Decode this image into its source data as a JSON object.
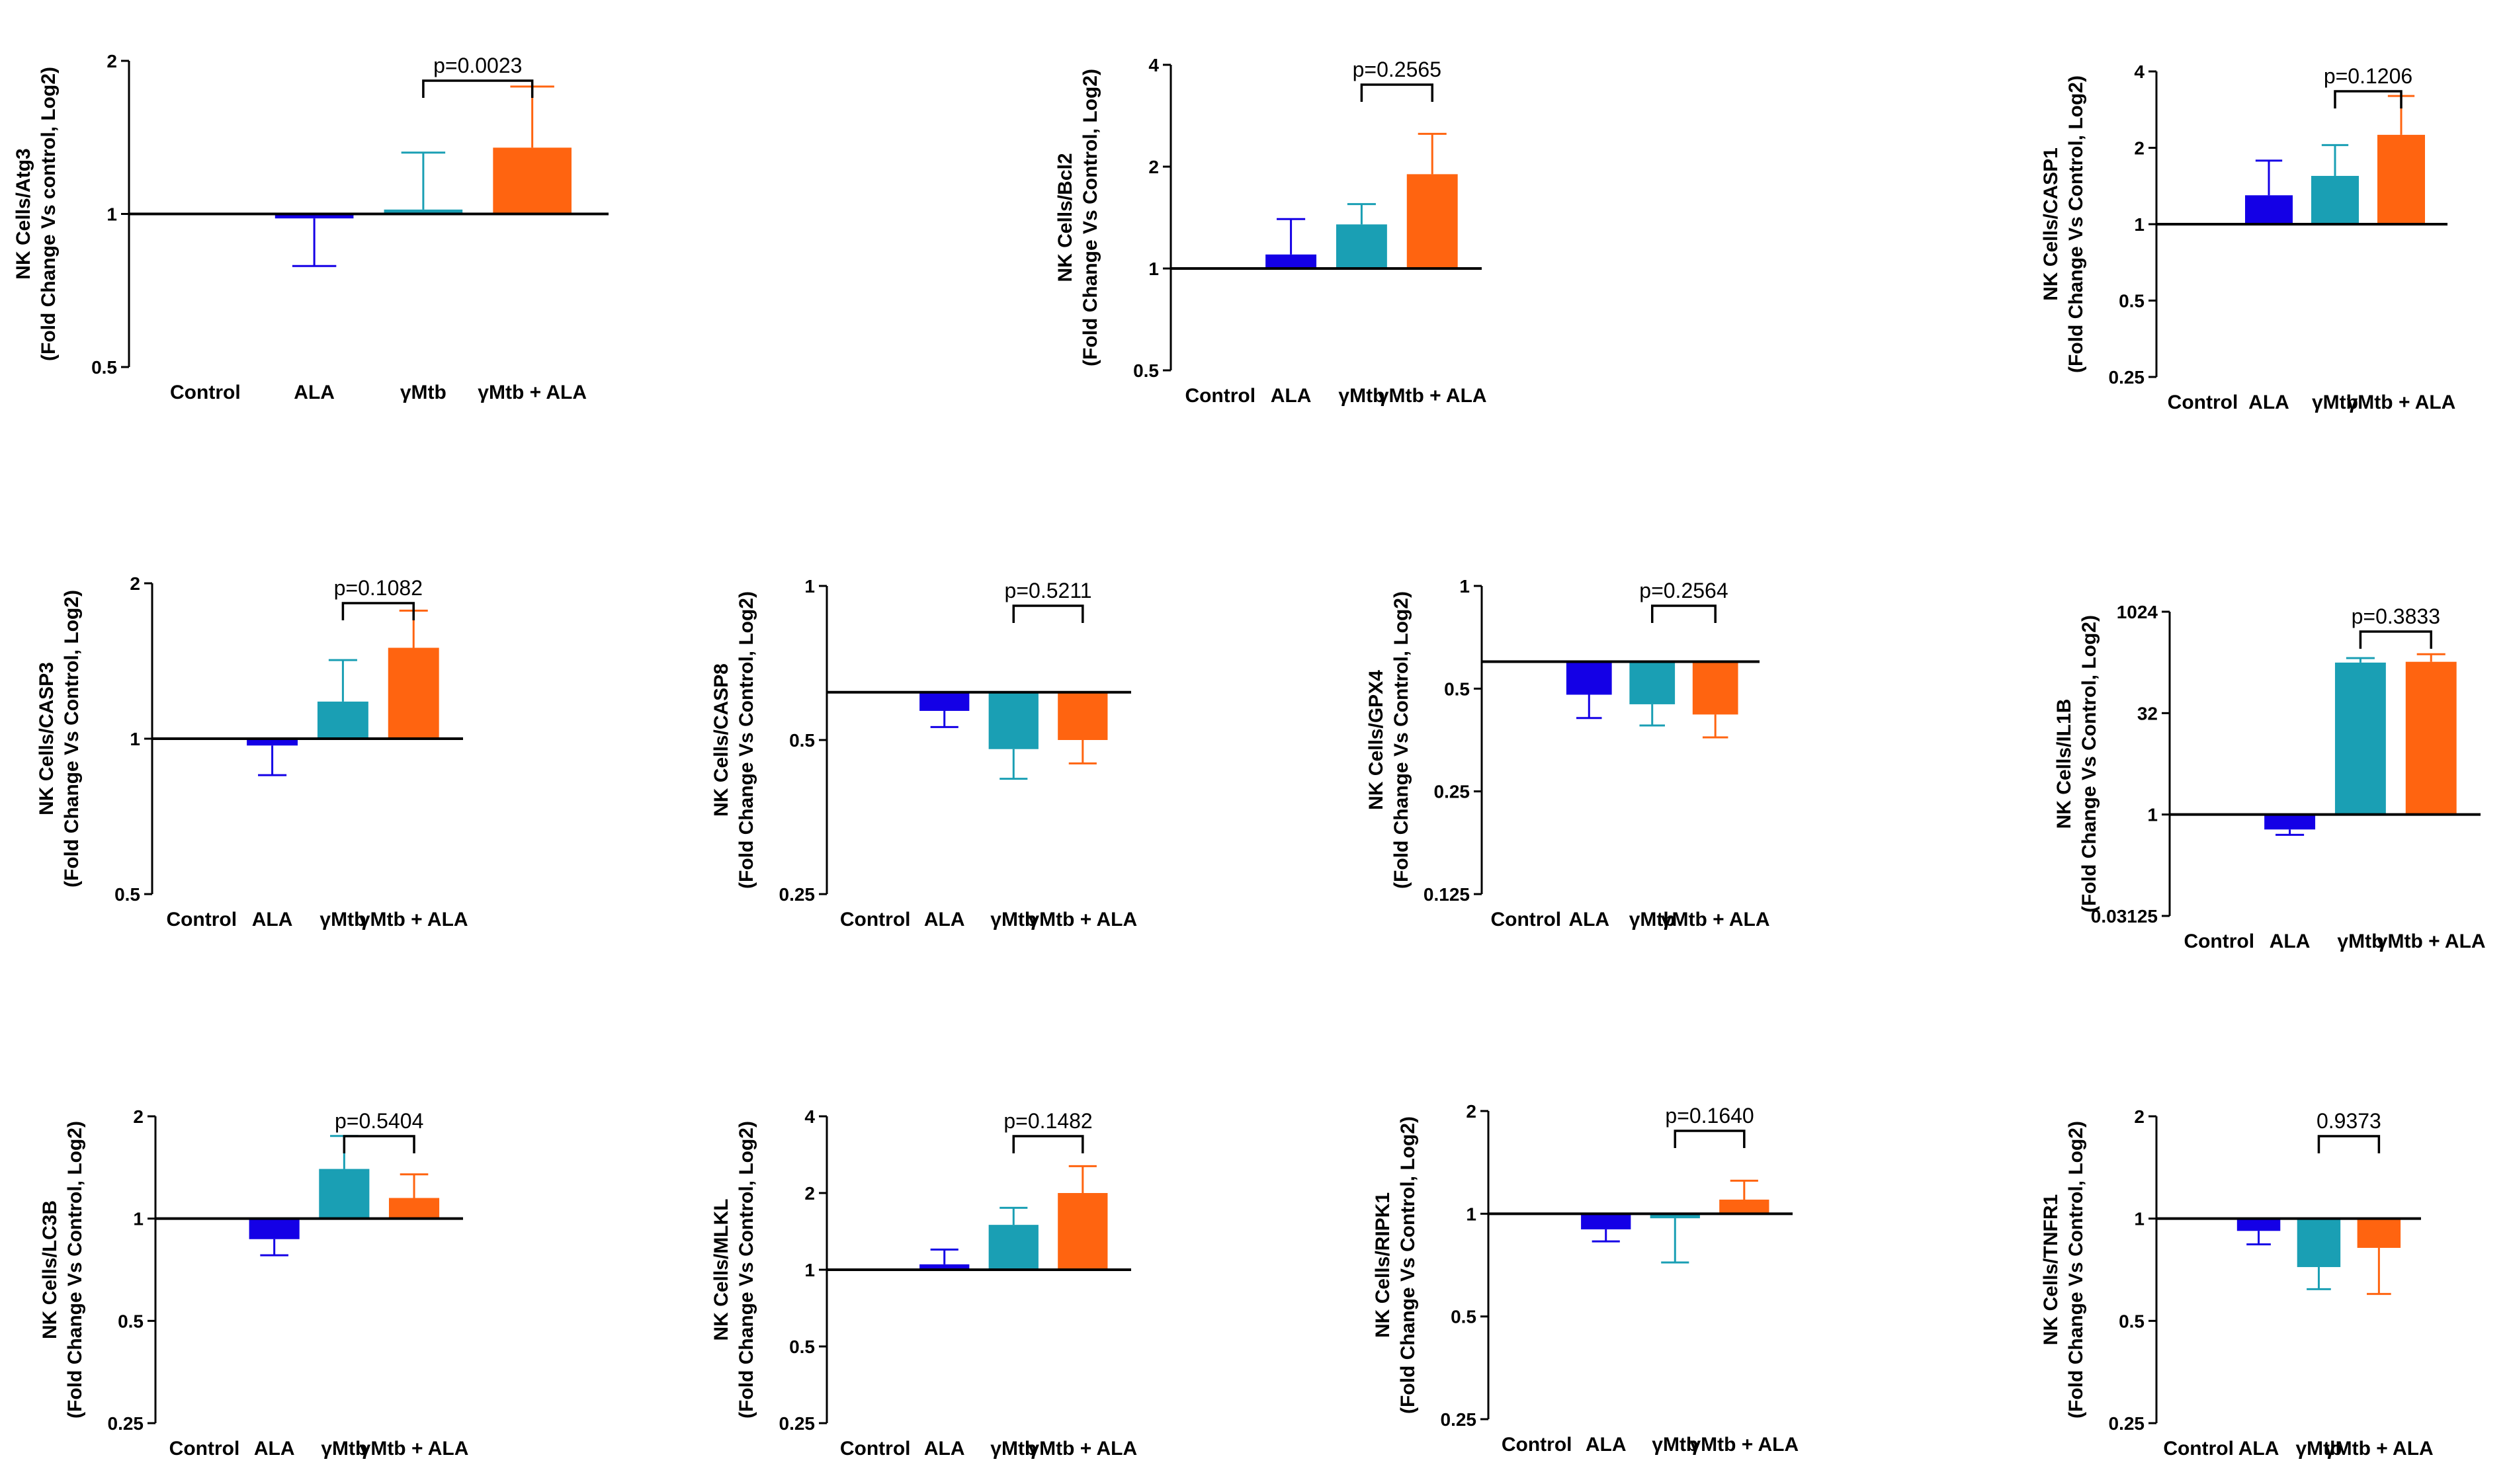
{
  "colors": {
    "Control": "#ffffff",
    "ALA": "#1400e6",
    "gMtb": "#1a9fb4",
    "gMtbALA": "#ff6410",
    "axis": "#000000"
  },
  "chart_data": [
    {
      "type": "bar",
      "ylabel_line1": "NK Cells/Atg3",
      "ylabel_line2": "(Fold Change Vs control, Log2)",
      "categories": [
        "Control",
        "ALA",
        "γMtb",
        "γMtb + ALA"
      ],
      "yticks": [
        "0.5",
        "1",
        "2"
      ],
      "ylim": [
        0.5,
        2
      ],
      "values": [
        1.0,
        0.98,
        1.02,
        1.35
      ],
      "errors": [
        0,
        0.79,
        1.32,
        1.78
      ],
      "baseline": 1,
      "pvalue": {
        "label": "p=0.0023",
        "from": 2,
        "to": 3
      }
    },
    {
      "type": "bar",
      "ylabel_line1": "NK Cells/Bcl2",
      "ylabel_line2": "(Fold Change Vs Control, Log2)",
      "categories": [
        "Control",
        "ALA",
        "γMtb",
        "γMtb + ALA"
      ],
      "yticks": [
        "0.5",
        "1",
        "2",
        "4"
      ],
      "ylim": [
        0.5,
        4
      ],
      "values": [
        1.0,
        1.1,
        1.35,
        1.9
      ],
      "errors": [
        0,
        1.4,
        1.55,
        2.5
      ],
      "baseline": 1,
      "pvalue": {
        "label": "p=0.2565",
        "from": 2,
        "to": 3
      }
    },
    {
      "type": "bar",
      "ylabel_line1": "NK Cells/CASP1",
      "ylabel_line2": "(Fold Change Vs Control, Log2)",
      "categories": [
        "Control",
        "ALA",
        "γMtb",
        "γMtb + ALA"
      ],
      "yticks": [
        "0.25",
        "0.5",
        "1",
        "2",
        "4"
      ],
      "ylim": [
        0.25,
        4
      ],
      "values": [
        1.0,
        1.3,
        1.55,
        2.25
      ],
      "errors": [
        0,
        1.78,
        2.05,
        3.2
      ],
      "baseline": 1,
      "pvalue": {
        "label": "p=0.1206",
        "from": 2,
        "to": 3
      }
    },
    {
      "type": "bar",
      "ylabel_line1": "NK Cells/CASP3",
      "ylabel_line2": "(Fold Change Vs Control, Log2)",
      "categories": [
        "Control",
        "ALA",
        "γMtb",
        "γMtb + ALA"
      ],
      "yticks": [
        "0.5",
        "1",
        "2"
      ],
      "ylim": [
        0.5,
        2
      ],
      "values": [
        1.0,
        0.97,
        1.18,
        1.5
      ],
      "errors": [
        0,
        0.85,
        1.42,
        1.77
      ],
      "baseline": 1,
      "pvalue": {
        "label": "p=0.1082",
        "from": 2,
        "to": 3
      }
    },
    {
      "type": "bar",
      "ylabel_line1": "NK Cells/CASP8",
      "ylabel_line2": "(Fold Change Vs Control, Log2)",
      "categories": [
        "Control",
        "ALA",
        "γMtb",
        "γMtb + ALA"
      ],
      "yticks": [
        "0.25",
        "0.5",
        "1"
      ],
      "ylim": [
        0.25,
        1
      ],
      "values": [
        0.62,
        0.57,
        0.48,
        0.5
      ],
      "errors": [
        0,
        0.53,
        0.42,
        0.45
      ],
      "baseline": 0.62,
      "pvalue": {
        "label": "p=0.5211",
        "from": 2,
        "to": 3
      }
    },
    {
      "type": "bar",
      "ylabel_line1": "NK Cells/GPX4",
      "ylabel_line2": "(Fold Change Vs Control, Log2)",
      "categories": [
        "Control",
        "ALA",
        "γMtb",
        "γMtb + ALA"
      ],
      "yticks": [
        "0.125",
        "0.25",
        "0.5",
        "1"
      ],
      "ylim": [
        0.125,
        1
      ],
      "values": [
        0.6,
        0.48,
        0.45,
        0.42
      ],
      "errors": [
        0,
        0.41,
        0.39,
        0.36
      ],
      "baseline": 0.6,
      "pvalue": {
        "label": "p=0.2564",
        "from": 2,
        "to": 3
      }
    },
    {
      "type": "bar",
      "ylabel_line1": "NK Cells/IL1B",
      "ylabel_line2": "(Fold Change Vs Control, Log2)",
      "categories": [
        "Control",
        "ALA",
        "γMtb",
        "γMtb + ALA"
      ],
      "yticks": [
        "0.03125",
        "1",
        "32",
        "1024"
      ],
      "ylim": [
        0.03125,
        1024
      ],
      "values": [
        1.0,
        0.6,
        180,
        185
      ],
      "errors": [
        0,
        0.5,
        210,
        240
      ],
      "baseline": 1,
      "pvalue": {
        "label": "p=0.3833",
        "from": 2,
        "to": 3
      }
    },
    {
      "type": "bar",
      "ylabel_line1": "NK Cells/LC3B",
      "ylabel_line2": "(Fold Change Vs Control, Log2)",
      "categories": [
        "Control",
        "ALA",
        "γMtb",
        "γMtb + ALA"
      ],
      "yticks": [
        "0.25",
        "0.5",
        "1",
        "2"
      ],
      "ylim": [
        0.25,
        2
      ],
      "values": [
        1.0,
        0.87,
        1.4,
        1.15
      ],
      "errors": [
        0,
        0.78,
        1.75,
        1.35
      ],
      "baseline": 1,
      "pvalue": {
        "label": "p=0.5404",
        "from": 2,
        "to": 3
      }
    },
    {
      "type": "bar",
      "ylabel_line1": "NK Cells/MLKL",
      "ylabel_line2": "(Fold Change Vs Control, Log2)",
      "categories": [
        "Control",
        "ALA",
        "γMtb",
        "γMtb + ALA"
      ],
      "yticks": [
        "0.25",
        "0.5",
        "1",
        "2",
        "4"
      ],
      "ylim": [
        0.25,
        4
      ],
      "values": [
        1.0,
        1.05,
        1.5,
        2.0
      ],
      "errors": [
        0,
        1.2,
        1.75,
        2.55
      ],
      "baseline": 1,
      "pvalue": {
        "label": "p=0.1482",
        "from": 2,
        "to": 3
      }
    },
    {
      "type": "bar",
      "ylabel_line1": "NK Cells/RIPK1",
      "ylabel_line2": "(Fold Change Vs Control, Log2)",
      "categories": [
        "Control",
        "ALA",
        "γMtb",
        "γMtb + ALA"
      ],
      "yticks": [
        "0.25",
        "0.5",
        "1",
        "2"
      ],
      "ylim": [
        0.25,
        2
      ],
      "values": [
        1.0,
        0.9,
        0.97,
        1.1
      ],
      "errors": [
        0,
        0.83,
        0.72,
        1.25
      ],
      "baseline": 1,
      "pvalue": {
        "label": "p=0.1640",
        "from": 2,
        "to": 3
      }
    },
    {
      "type": "bar",
      "ylabel_line1": "NK Cells/TNFR1",
      "ylabel_line2": "(Fold Change Vs Control, Log2)",
      "categories": [
        "Control",
        "ALA",
        "γMtb",
        "γMtb + ALA"
      ],
      "yticks": [
        "0.25",
        "0.5",
        "1",
        "2"
      ],
      "ylim": [
        0.25,
        2
      ],
      "values": [
        1.0,
        0.92,
        0.72,
        0.82
      ],
      "errors": [
        0,
        0.84,
        0.62,
        0.6
      ],
      "baseline": 1,
      "pvalue": {
        "label": "0.9373",
        "from": 2,
        "to": 3
      }
    }
  ]
}
